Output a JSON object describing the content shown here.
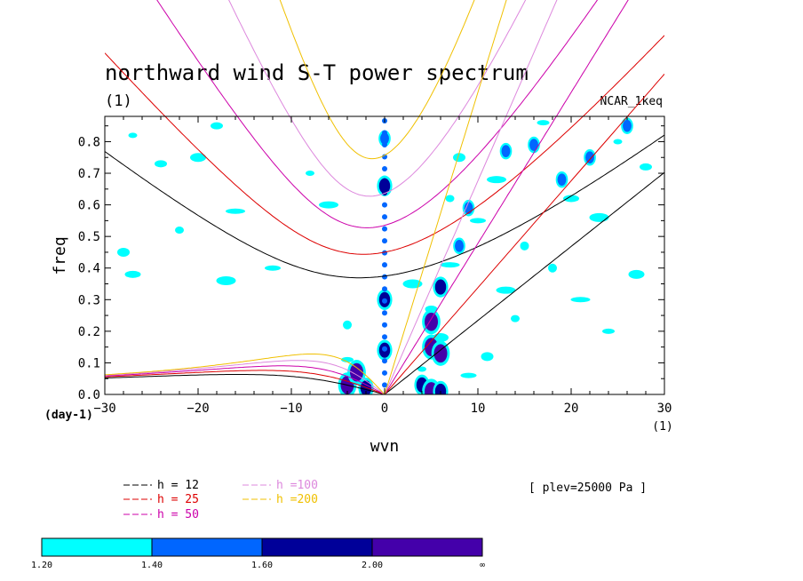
{
  "chart_data": {
    "type": "heatmap",
    "title": "northward wind S-T power spectrum",
    "subtitle_left": "(1)",
    "subtitle_right": "NCAR_1keq",
    "xlabel": "wvn",
    "ylabel": "freq",
    "x_unit_left": "(day-1)",
    "x_unit_right": "(1)",
    "xlim": [
      -30,
      30
    ],
    "ylim": [
      0,
      0.88
    ],
    "x_ticks": [
      -30,
      -20,
      -10,
      0,
      10,
      20,
      30
    ],
    "x_tick_labels": [
      "−30",
      "−20",
      "−10",
      "0",
      "10",
      "20",
      "30"
    ],
    "y_ticks": [
      0.0,
      0.1,
      0.2,
      0.3,
      0.4,
      0.5,
      0.6,
      0.7,
      0.8
    ],
    "y_tick_labels": [
      "0.0",
      "0.1",
      "0.2",
      "0.3",
      "0.4",
      "0.5",
      "0.6",
      "0.7",
      "0.8"
    ],
    "annotation": "[ plev=25000 Pa ]",
    "dispersion_curves": [
      {
        "name": "h = 12",
        "color": "#000000"
      },
      {
        "name": "h = 25",
        "color": "#dd0000"
      },
      {
        "name": "h = 50",
        "color": "#cc00aa"
      },
      {
        "name": "h =100",
        "color": "#dd88dd"
      },
      {
        "name": "h =200",
        "color": "#f0c000"
      }
    ],
    "color_levels": [
      {
        "from": "1.20",
        "color": "#00ffff"
      },
      {
        "from": "1.40",
        "color": "#0066ff"
      },
      {
        "from": "1.60",
        "color": "#000099"
      },
      {
        "from": "2.00",
        "color": "#4400aa"
      }
    ],
    "colorbar_labels": [
      "1.20",
      "1.40",
      "1.60",
      "2.00",
      "∞"
    ],
    "high_power_regions": [
      {
        "x": 0,
        "y": 0.14,
        "level": 3
      },
      {
        "x": 0,
        "y": 0.3,
        "level": 3
      },
      {
        "x": 0,
        "y": 0.66,
        "level": 3
      },
      {
        "x": 0,
        "y": 0.81,
        "level": 2
      },
      {
        "x": -4,
        "y": 0.03,
        "level": 4
      },
      {
        "x": -3,
        "y": 0.07,
        "level": 4
      },
      {
        "x": -2,
        "y": 0.02,
        "level": 3
      },
      {
        "x": 5,
        "y": 0.15,
        "level": 4
      },
      {
        "x": 5,
        "y": 0.23,
        "level": 4
      },
      {
        "x": 6,
        "y": 0.13,
        "level": 4
      },
      {
        "x": 4,
        "y": 0.03,
        "level": 3
      },
      {
        "x": 5,
        "y": 0.01,
        "level": 4
      },
      {
        "x": 6,
        "y": 0.01,
        "level": 3
      },
      {
        "x": 6,
        "y": 0.34,
        "level": 3
      },
      {
        "x": 8,
        "y": 0.47,
        "level": 2
      },
      {
        "x": 9,
        "y": 0.59,
        "level": 2
      },
      {
        "x": 13,
        "y": 0.77,
        "level": 2
      },
      {
        "x": 16,
        "y": 0.79,
        "level": 2
      },
      {
        "x": 19,
        "y": 0.68,
        "level": 2
      },
      {
        "x": 22,
        "y": 0.75,
        "level": 2
      },
      {
        "x": 26,
        "y": 0.85,
        "level": 2
      }
    ],
    "low_power_regions": [
      {
        "x": -27,
        "y": 0.82
      },
      {
        "x": -24,
        "y": 0.73
      },
      {
        "x": -20,
        "y": 0.75
      },
      {
        "x": -16,
        "y": 0.58
      },
      {
        "x": -22,
        "y": 0.52
      },
      {
        "x": -28,
        "y": 0.45
      },
      {
        "x": -12,
        "y": 0.4
      },
      {
        "x": -6,
        "y": 0.6
      },
      {
        "x": -4,
        "y": 0.22
      },
      {
        "x": -4,
        "y": 0.11
      },
      {
        "x": -3,
        "y": 0.05
      },
      {
        "x": 3,
        "y": 0.35
      },
      {
        "x": 4,
        "y": 0.08
      },
      {
        "x": 5,
        "y": 0.27
      },
      {
        "x": 6,
        "y": 0.18
      },
      {
        "x": 7,
        "y": 0.41
      },
      {
        "x": 7,
        "y": 0.62
      },
      {
        "x": 8,
        "y": 0.75
      },
      {
        "x": 10,
        "y": 0.55
      },
      {
        "x": 12,
        "y": 0.68
      },
      {
        "x": 15,
        "y": 0.47
      },
      {
        "x": 17,
        "y": 0.86
      },
      {
        "x": 20,
        "y": 0.62
      },
      {
        "x": 23,
        "y": 0.56
      },
      {
        "x": 25,
        "y": 0.8
      },
      {
        "x": 28,
        "y": 0.72
      },
      {
        "x": 27,
        "y": 0.38
      },
      {
        "x": 21,
        "y": 0.3
      },
      {
        "x": 14,
        "y": 0.24
      },
      {
        "x": 11,
        "y": 0.12
      },
      {
        "x": 9,
        "y": 0.06
      },
      {
        "x": 13,
        "y": 0.33
      },
      {
        "x": 18,
        "y": 0.4
      },
      {
        "x": 24,
        "y": 0.2
      },
      {
        "x": -27,
        "y": 0.38
      },
      {
        "x": -17,
        "y": 0.36
      },
      {
        "x": -8,
        "y": 0.7
      },
      {
        "x": -18,
        "y": 0.85
      }
    ]
  }
}
